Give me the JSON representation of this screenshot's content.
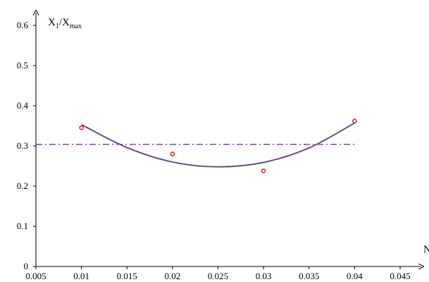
{
  "chart_data": {
    "type": "scatter",
    "title": "",
    "xlabel": "N",
    "ylabel": {
      "main": "X",
      "sub1": "1",
      "slash": "/X",
      "sub2": "max"
    },
    "xlim": [
      0.005,
      0.045
    ],
    "ylim": [
      0,
      0.6
    ],
    "x_ticks": [
      0.005,
      0.01,
      0.015,
      0.02,
      0.025,
      0.03,
      0.035,
      0.04,
      0.045
    ],
    "x_tick_labels": [
      "0.005",
      "0.01",
      "0.015",
      "0.02",
      "0.025",
      "0.03",
      "0.035",
      "0.04",
      "0.045"
    ],
    "y_ticks": [
      0,
      0.1,
      0.2,
      0.3,
      0.4,
      0.5,
      0.6
    ],
    "y_tick_labels": [
      "0",
      "0.1",
      "0.2",
      "0.3",
      "0.4",
      "0.5",
      "0.6"
    ],
    "grid": false,
    "series": [
      {
        "type": "scatter",
        "x": [
          0.01,
          0.02,
          0.03,
          0.04
        ],
        "y": [
          0.345,
          0.28,
          0.238,
          0.362
        ],
        "color": "#d42020"
      },
      {
        "type": "line",
        "x": [
          0.01,
          0.015,
          0.02,
          0.025,
          0.03,
          0.035,
          0.04
        ],
        "y": [
          0.353,
          0.296,
          0.26,
          0.248,
          0.259,
          0.295,
          0.357
        ],
        "color": "#6a4c8c"
      },
      {
        "type": "hline",
        "y": 0.304,
        "x": [
          0.005,
          0.04
        ],
        "color": "#8a3fc0",
        "style": "dash-dot"
      }
    ]
  }
}
